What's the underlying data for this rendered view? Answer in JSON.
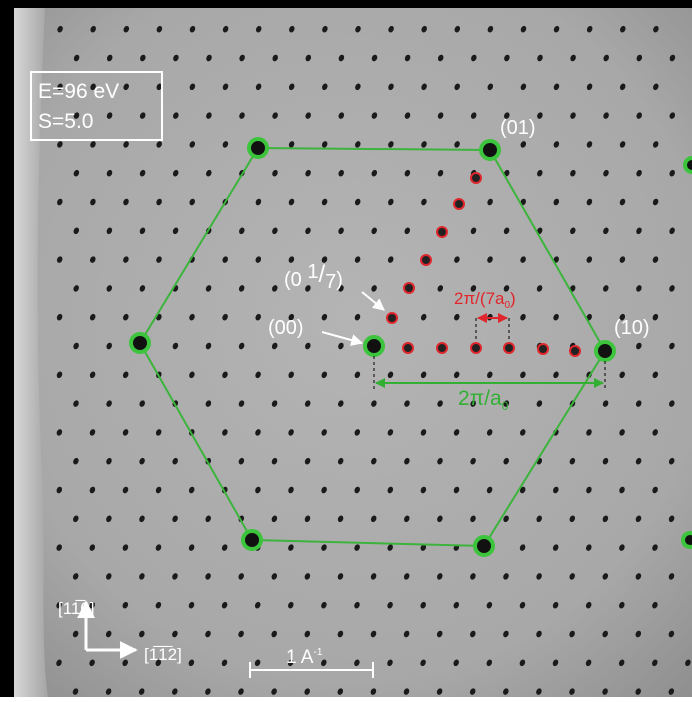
{
  "settings": {
    "energy": "E=96 eV",
    "screen": "S=5.0"
  },
  "labels": {
    "spot_01": "(01)",
    "spot_00": "(00)",
    "spot_10": "(10)",
    "spot_0_1_7": {
      "open": "(0 ",
      "num": "1",
      "sep": "/",
      "den": "7",
      "close": ")"
    },
    "superstructure_spacing": {
      "text": "2π/(7a",
      "sub": "0",
      "close": ")"
    },
    "reciprocal_spacing": {
      "text": "2π/a",
      "sub": "0"
    },
    "scale_bar": {
      "text": "1 A",
      "sup": "-1"
    },
    "direction_up": "[11̅0]",
    "direction_right": "[1̅1̅2]"
  }
}
